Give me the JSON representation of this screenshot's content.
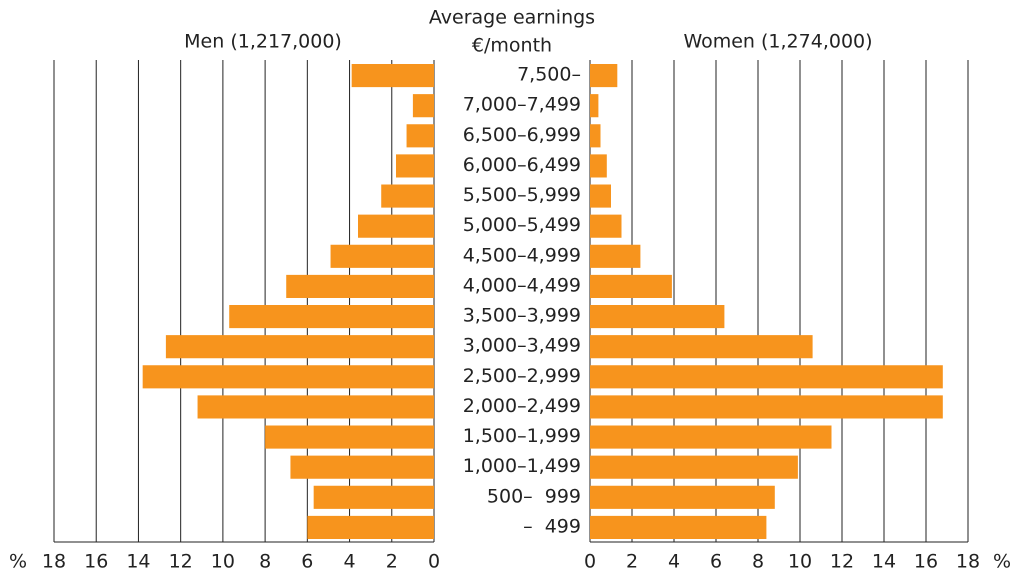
{
  "chart_data": {
    "type": "pyramid",
    "title_lines": [
      "Average earnings",
      "€/month"
    ],
    "categories": [
      "7,500–",
      "7,000–7,499",
      "6,500–6,999",
      "6,000–6,499",
      "5,500–5,999",
      "5,000–5,499",
      "4,500–4,999",
      "4,000–4,499",
      "3,500–3,999",
      "3,000–3,499",
      "2,500–2,999",
      "2,000–2,499",
      "1,500–1,999",
      "1,000–1,499",
      "500–  999",
      "–  499"
    ],
    "series": [
      {
        "name": "Men (1,217,000)",
        "color": "#f7941d",
        "values": [
          3.9,
          1.0,
          1.3,
          1.8,
          2.5,
          3.6,
          4.9,
          7.0,
          9.7,
          12.7,
          13.8,
          11.2,
          8.0,
          6.8,
          5.7,
          6.0
        ]
      },
      {
        "name": "Women (1,274,000)",
        "color": "#f7941d",
        "values": [
          1.3,
          0.4,
          0.5,
          0.8,
          1.0,
          1.5,
          2.4,
          3.9,
          6.4,
          10.6,
          16.8,
          16.8,
          11.5,
          9.9,
          8.8,
          8.4
        ]
      }
    ],
    "xlim": [
      0,
      18
    ],
    "xticks": [
      0,
      2,
      4,
      6,
      8,
      10,
      12,
      14,
      16,
      18
    ],
    "x_unit": "%",
    "grid": true
  }
}
